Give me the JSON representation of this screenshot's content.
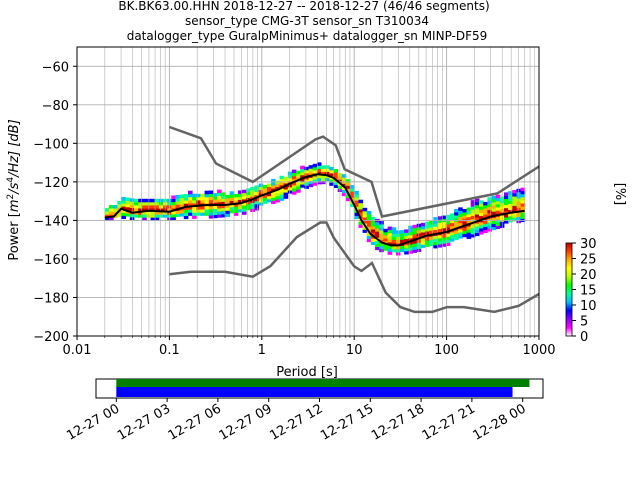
{
  "title_lines": [
    "BK.BK63.00.HHN   2018-12-27 -- 2018-12-27  (46/46 segments)",
    "sensor_type CMG-3T sensor_sn T310034",
    "datalogger_type GuralpMinimus+ datalogger_sn MINP-DF59"
  ],
  "chart_data": {
    "type": "heatmap",
    "xlabel": "Period [s]",
    "ylabel_parts": [
      "Power [",
      "m",
      "2",
      "/s",
      "4",
      "/Hz] [dB]"
    ],
    "xscale": "log",
    "xlim": [
      0.01,
      1000
    ],
    "ylim": [
      -200,
      -50
    ],
    "xticks": [
      0.01,
      0.1,
      1,
      10,
      100,
      1000
    ],
    "xtick_labels": [
      "0.01",
      "0.1",
      "1",
      "10",
      "100",
      "1000"
    ],
    "yticks": [
      -200,
      -180,
      -160,
      -140,
      -120,
      -100,
      -80,
      -60
    ],
    "ytick_labels": [
      "−200",
      "−180",
      "−160",
      "−140",
      "−120",
      "−100",
      "−80",
      "−60"
    ],
    "grid": true,
    "model_color": "#646464",
    "new_high_noise_model": {
      "period": [
        0.1,
        0.22,
        0.32,
        0.8,
        3.8,
        4.6,
        6.3,
        7.9,
        15.4,
        20,
        354.8,
        1000
      ],
      "power": [
        -91.5,
        -97.4,
        -110.5,
        -120,
        -98,
        -96.5,
        -101,
        -113.5,
        -120,
        -138,
        -126,
        -112
      ]
    },
    "new_low_noise_model": {
      "period": [
        0.1,
        0.17,
        0.4,
        0.8,
        1.24,
        2.4,
        4.3,
        5,
        6,
        10,
        12,
        15.6,
        21.9,
        31.6,
        45,
        70,
        101,
        154,
        328,
        600,
        1000
      ],
      "power": [
        -168,
        -166.7,
        -166.7,
        -169.2,
        -163.7,
        -148.6,
        -141.1,
        -141.1,
        -149,
        -163.8,
        -166.2,
        -162.1,
        -177.5,
        -185,
        -187.5,
        -187.5,
        -185,
        -185,
        -187.5,
        -184.4,
        -178.2
      ]
    },
    "mode_line": {
      "period": [
        0.02,
        0.025,
        0.03,
        0.04,
        0.06,
        0.1,
        0.15,
        0.25,
        0.4,
        0.6,
        0.8,
        1,
        1.5,
        2,
        3,
        4,
        5,
        6,
        8,
        10,
        12,
        15,
        20,
        25,
        30,
        40,
        60,
        100,
        150,
        200,
        300,
        500,
        700
      ],
      "power": [
        -138.5,
        -138,
        -134,
        -136,
        -135,
        -135.5,
        -133,
        -132,
        -132,
        -131,
        -129,
        -127,
        -124,
        -121,
        -117.5,
        -116,
        -116.5,
        -118,
        -123,
        -132,
        -140,
        -147,
        -151.5,
        -153,
        -153,
        -151,
        -148,
        -146,
        -143,
        -141,
        -138,
        -136,
        -135
      ]
    },
    "band_upper": [
      -133,
      -132,
      -128,
      -129,
      -129,
      -129,
      -126,
      -125,
      -126,
      -125,
      -123,
      -121,
      -118,
      -115,
      -112,
      -111,
      -112,
      -113.5,
      -118,
      -126,
      -133,
      -138,
      -143,
      -145,
      -146,
      -144,
      -141,
      -137,
      -133,
      -130,
      -128,
      -126,
      -124
    ],
    "band_lower": [
      -140,
      -140,
      -139,
      -140,
      -140,
      -140,
      -139,
      -139,
      -138,
      -137,
      -135,
      -133,
      -130,
      -127,
      -123,
      -121,
      -121,
      -123,
      -129,
      -139,
      -147,
      -154,
      -157,
      -158,
      -158,
      -157,
      -155,
      -153,
      -150,
      -148,
      -145,
      -142,
      -140
    ],
    "colorbar": {
      "label": "[%]",
      "min": 0,
      "max": 30,
      "ticks": [
        0,
        5,
        10,
        15,
        20,
        25,
        30
      ],
      "tick_labels": [
        "0",
        "5",
        "10",
        "15",
        "20",
        "25",
        "30"
      ],
      "colormap": [
        "#ffffff",
        "#ff00ff",
        "#8a00ff",
        "#0000ff",
        "#00bfff",
        "#00ff9a",
        "#00ff00",
        "#b5ff00",
        "#ffff00",
        "#ffb000",
        "#ff3c00",
        "#c00000"
      ]
    },
    "coverage": {
      "tick_labels": [
        "12-27 00",
        "12-27 03",
        "12-27 06",
        "12-27 09",
        "12-27 12",
        "12-27 15",
        "12-27 18",
        "12-27 21",
        "12-28 00"
      ],
      "tick_hours": [
        0,
        3,
        6,
        9,
        12,
        15,
        18,
        21,
        24
      ],
      "axis_hours": [
        -1.2,
        25.2
      ],
      "data_available": [
        0,
        24.4
      ],
      "psd_used": [
        0,
        23.4
      ],
      "data_color": "#008000",
      "psd_color": "#0000ff"
    }
  }
}
